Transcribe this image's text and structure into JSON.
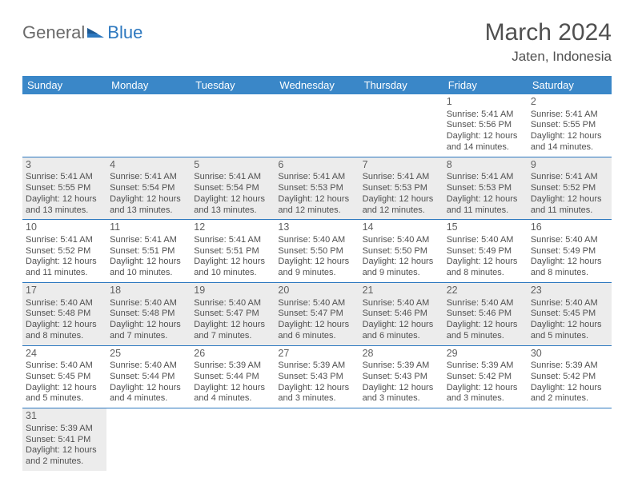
{
  "logo": {
    "text1": "General",
    "text2": "Blue"
  },
  "title": "March 2024",
  "location": "Jaten, Indonesia",
  "colors": {
    "header_bg": "#3a87c8",
    "header_text": "#ffffff",
    "divider": "#2d78bf",
    "alt_cell_bg": "#ececec",
    "text": "#505050",
    "logo_gray": "#6a6a6a",
    "logo_blue": "#2d78bf"
  },
  "weekdays": [
    "Sunday",
    "Monday",
    "Tuesday",
    "Wednesday",
    "Thursday",
    "Friday",
    "Saturday"
  ],
  "weeks": [
    [
      null,
      null,
      null,
      null,
      null,
      {
        "n": "1",
        "sr": "Sunrise: 5:41 AM",
        "ss": "Sunset: 5:56 PM",
        "d1": "Daylight: 12 hours",
        "d2": "and 14 minutes."
      },
      {
        "n": "2",
        "sr": "Sunrise: 5:41 AM",
        "ss": "Sunset: 5:55 PM",
        "d1": "Daylight: 12 hours",
        "d2": "and 14 minutes."
      }
    ],
    [
      {
        "n": "3",
        "sr": "Sunrise: 5:41 AM",
        "ss": "Sunset: 5:55 PM",
        "d1": "Daylight: 12 hours",
        "d2": "and 13 minutes."
      },
      {
        "n": "4",
        "sr": "Sunrise: 5:41 AM",
        "ss": "Sunset: 5:54 PM",
        "d1": "Daylight: 12 hours",
        "d2": "and 13 minutes."
      },
      {
        "n": "5",
        "sr": "Sunrise: 5:41 AM",
        "ss": "Sunset: 5:54 PM",
        "d1": "Daylight: 12 hours",
        "d2": "and 13 minutes."
      },
      {
        "n": "6",
        "sr": "Sunrise: 5:41 AM",
        "ss": "Sunset: 5:53 PM",
        "d1": "Daylight: 12 hours",
        "d2": "and 12 minutes."
      },
      {
        "n": "7",
        "sr": "Sunrise: 5:41 AM",
        "ss": "Sunset: 5:53 PM",
        "d1": "Daylight: 12 hours",
        "d2": "and 12 minutes."
      },
      {
        "n": "8",
        "sr": "Sunrise: 5:41 AM",
        "ss": "Sunset: 5:53 PM",
        "d1": "Daylight: 12 hours",
        "d2": "and 11 minutes."
      },
      {
        "n": "9",
        "sr": "Sunrise: 5:41 AM",
        "ss": "Sunset: 5:52 PM",
        "d1": "Daylight: 12 hours",
        "d2": "and 11 minutes."
      }
    ],
    [
      {
        "n": "10",
        "sr": "Sunrise: 5:41 AM",
        "ss": "Sunset: 5:52 PM",
        "d1": "Daylight: 12 hours",
        "d2": "and 11 minutes."
      },
      {
        "n": "11",
        "sr": "Sunrise: 5:41 AM",
        "ss": "Sunset: 5:51 PM",
        "d1": "Daylight: 12 hours",
        "d2": "and 10 minutes."
      },
      {
        "n": "12",
        "sr": "Sunrise: 5:41 AM",
        "ss": "Sunset: 5:51 PM",
        "d1": "Daylight: 12 hours",
        "d2": "and 10 minutes."
      },
      {
        "n": "13",
        "sr": "Sunrise: 5:40 AM",
        "ss": "Sunset: 5:50 PM",
        "d1": "Daylight: 12 hours",
        "d2": "and 9 minutes."
      },
      {
        "n": "14",
        "sr": "Sunrise: 5:40 AM",
        "ss": "Sunset: 5:50 PM",
        "d1": "Daylight: 12 hours",
        "d2": "and 9 minutes."
      },
      {
        "n": "15",
        "sr": "Sunrise: 5:40 AM",
        "ss": "Sunset: 5:49 PM",
        "d1": "Daylight: 12 hours",
        "d2": "and 8 minutes."
      },
      {
        "n": "16",
        "sr": "Sunrise: 5:40 AM",
        "ss": "Sunset: 5:49 PM",
        "d1": "Daylight: 12 hours",
        "d2": "and 8 minutes."
      }
    ],
    [
      {
        "n": "17",
        "sr": "Sunrise: 5:40 AM",
        "ss": "Sunset: 5:48 PM",
        "d1": "Daylight: 12 hours",
        "d2": "and 8 minutes."
      },
      {
        "n": "18",
        "sr": "Sunrise: 5:40 AM",
        "ss": "Sunset: 5:48 PM",
        "d1": "Daylight: 12 hours",
        "d2": "and 7 minutes."
      },
      {
        "n": "19",
        "sr": "Sunrise: 5:40 AM",
        "ss": "Sunset: 5:47 PM",
        "d1": "Daylight: 12 hours",
        "d2": "and 7 minutes."
      },
      {
        "n": "20",
        "sr": "Sunrise: 5:40 AM",
        "ss": "Sunset: 5:47 PM",
        "d1": "Daylight: 12 hours",
        "d2": "and 6 minutes."
      },
      {
        "n": "21",
        "sr": "Sunrise: 5:40 AM",
        "ss": "Sunset: 5:46 PM",
        "d1": "Daylight: 12 hours",
        "d2": "and 6 minutes."
      },
      {
        "n": "22",
        "sr": "Sunrise: 5:40 AM",
        "ss": "Sunset: 5:46 PM",
        "d1": "Daylight: 12 hours",
        "d2": "and 5 minutes."
      },
      {
        "n": "23",
        "sr": "Sunrise: 5:40 AM",
        "ss": "Sunset: 5:45 PM",
        "d1": "Daylight: 12 hours",
        "d2": "and 5 minutes."
      }
    ],
    [
      {
        "n": "24",
        "sr": "Sunrise: 5:40 AM",
        "ss": "Sunset: 5:45 PM",
        "d1": "Daylight: 12 hours",
        "d2": "and 5 minutes."
      },
      {
        "n": "25",
        "sr": "Sunrise: 5:40 AM",
        "ss": "Sunset: 5:44 PM",
        "d1": "Daylight: 12 hours",
        "d2": "and 4 minutes."
      },
      {
        "n": "26",
        "sr": "Sunrise: 5:39 AM",
        "ss": "Sunset: 5:44 PM",
        "d1": "Daylight: 12 hours",
        "d2": "and 4 minutes."
      },
      {
        "n": "27",
        "sr": "Sunrise: 5:39 AM",
        "ss": "Sunset: 5:43 PM",
        "d1": "Daylight: 12 hours",
        "d2": "and 3 minutes."
      },
      {
        "n": "28",
        "sr": "Sunrise: 5:39 AM",
        "ss": "Sunset: 5:43 PM",
        "d1": "Daylight: 12 hours",
        "d2": "and 3 minutes."
      },
      {
        "n": "29",
        "sr": "Sunrise: 5:39 AM",
        "ss": "Sunset: 5:42 PM",
        "d1": "Daylight: 12 hours",
        "d2": "and 3 minutes."
      },
      {
        "n": "30",
        "sr": "Sunrise: 5:39 AM",
        "ss": "Sunset: 5:42 PM",
        "d1": "Daylight: 12 hours",
        "d2": "and 2 minutes."
      }
    ],
    [
      {
        "n": "31",
        "sr": "Sunrise: 5:39 AM",
        "ss": "Sunset: 5:41 PM",
        "d1": "Daylight: 12 hours",
        "d2": "and 2 minutes."
      },
      null,
      null,
      null,
      null,
      null,
      null
    ]
  ]
}
